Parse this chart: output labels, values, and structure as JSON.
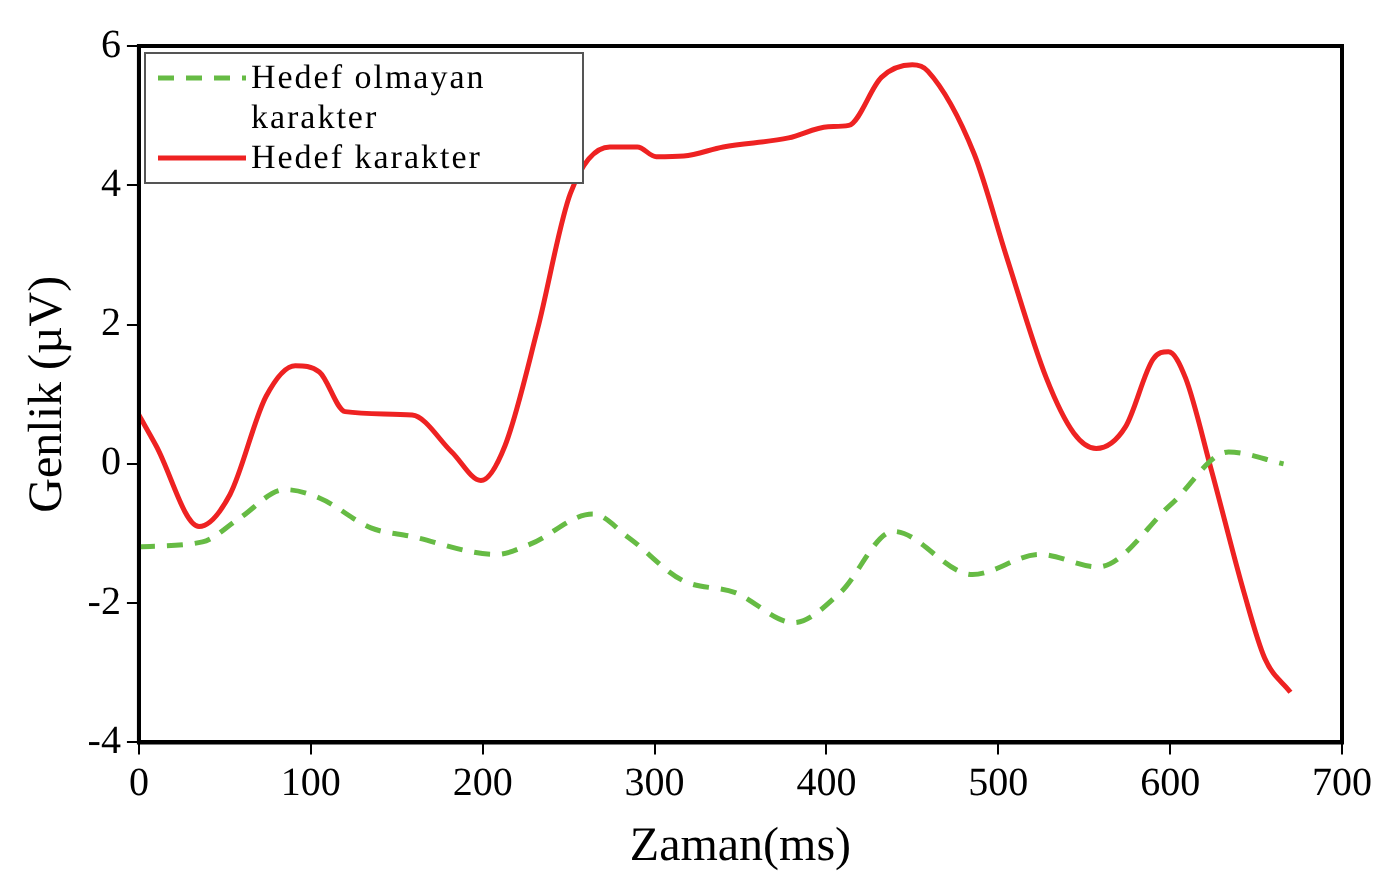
{
  "chart_data": {
    "type": "line",
    "xlabel": "Zaman(ms)",
    "ylabel": "Genlik (µV)",
    "xlim": [
      0,
      700
    ],
    "xticks": [
      0,
      100,
      200,
      300,
      400,
      500,
      600,
      700
    ],
    "ylim": [
      -4,
      6
    ],
    "yticks": [
      -4,
      -2,
      0,
      2,
      4,
      6
    ],
    "grid": false,
    "legend": "top left",
    "series": [
      {
        "name": "Hedef olmayan karakter",
        "color": "#66bb44",
        "line_style": "dashed",
        "x": [
          0,
          37,
          58,
          85,
          105,
          135,
          158,
          208,
          228,
          264,
          285,
          316,
          347,
          381,
          408,
          439,
          485,
          524,
          558,
          601,
          634,
          666
        ],
        "values": [
          -1.19,
          -1.12,
          -0.79,
          -0.37,
          -0.49,
          -0.92,
          -1.04,
          -1.3,
          -1.15,
          -0.72,
          -1.06,
          -1.67,
          -1.85,
          -2.28,
          -1.85,
          -0.97,
          -1.59,
          -1.3,
          -1.48,
          -0.57,
          0.17,
          0.0
        ]
      },
      {
        "name": "Hedef karakter",
        "color": "#ee2222",
        "line_style": "solid",
        "x": [
          0,
          10,
          35,
          53,
          74,
          91,
          105,
          120,
          159,
          182,
          199,
          213,
          232,
          251,
          274,
          290,
          301,
          317,
          340,
          378,
          401,
          413,
          432,
          450,
          459,
          486,
          505,
          528,
          544,
          557,
          574,
          590,
          599,
          609,
          624,
          643,
          655,
          670
        ],
        "values": [
          0.7,
          0.26,
          -0.9,
          -0.44,
          0.97,
          1.41,
          1.32,
          0.75,
          0.7,
          0.17,
          -0.24,
          0.26,
          1.94,
          3.88,
          4.55,
          4.55,
          4.41,
          4.42,
          4.55,
          4.68,
          4.84,
          4.86,
          5.55,
          5.73,
          5.64,
          4.45,
          2.96,
          1.23,
          0.44,
          0.22,
          0.53,
          1.5,
          1.61,
          1.23,
          -0.09,
          -1.85,
          -2.79,
          -3.28
        ]
      }
    ]
  }
}
